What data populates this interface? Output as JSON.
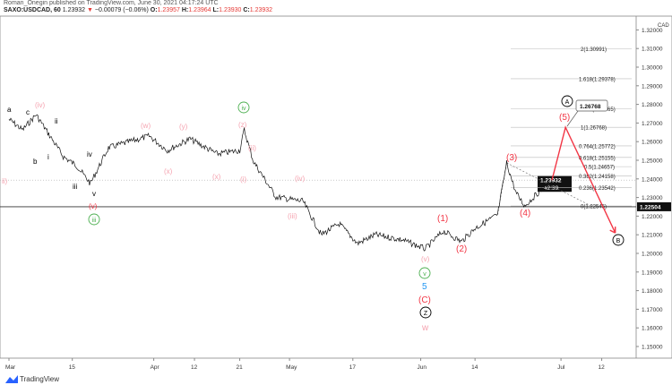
{
  "header": {
    "publisher": "Roman_Onegin published on TradingView.com, June 30, 2021 04:17:24 UTC",
    "symbol": "SAXO:USDCAD, 60",
    "last": "1.23932",
    "change": "−0.00079 (−0.06%)",
    "o_label": "O:",
    "o": "1.23957",
    "h_label": "H:",
    "h": "1.23964",
    "l_label": "L:",
    "l": "1.23930",
    "c_label": "C:",
    "c": "1.23932"
  },
  "brand": "TradingView",
  "colors": {
    "price": "#000000",
    "red": "#f23645",
    "pink": "#f5a3b0",
    "green": "#4caf50",
    "blue": "#2196f3"
  },
  "chart_data": {
    "type": "line",
    "title": "SAXO:USDCAD, 60",
    "y_axis": {
      "min": 1.15,
      "max": 1.32,
      "ticks": [
        "1.32000",
        "1.31000",
        "1.30000",
        "1.29000",
        "1.28000",
        "1.27000",
        "1.26000",
        "1.25000",
        "1.24000",
        "1.23000",
        "1.22000",
        "1.21000",
        "1.20000",
        "1.19000",
        "1.18000",
        "1.17000",
        "1.16000",
        "1.15000"
      ]
    },
    "x_axis": {
      "ticks": [
        {
          "label": "Mar",
          "day": 0
        },
        {
          "label": "15",
          "day": 14
        },
        {
          "label": "Apr",
          "day": 32
        },
        {
          "label": "12",
          "day": 41
        },
        {
          "label": "21",
          "day": 51
        },
        {
          "label": "May",
          "day": 62
        },
        {
          "label": "17",
          "day": 76
        },
        {
          "label": "Jun",
          "day": 91
        },
        {
          "label": "14",
          "day": 103
        },
        {
          "label": "Jul",
          "day": 122
        },
        {
          "label": "12",
          "day": 131
        }
      ]
    },
    "price_path": [
      [
        0,
        1.272
      ],
      [
        3,
        1.2663
      ],
      [
        6,
        1.2745
      ],
      [
        12,
        1.252
      ],
      [
        15,
        1.247
      ],
      [
        18,
        1.2375
      ],
      [
        22,
        1.2567
      ],
      [
        31,
        1.263
      ],
      [
        35,
        1.2553
      ],
      [
        40,
        1.2615
      ],
      [
        46,
        1.2534
      ],
      [
        51,
        1.2553
      ],
      [
        52,
        1.2663
      ],
      [
        54,
        1.2495
      ],
      [
        59,
        1.2303
      ],
      [
        65,
        1.2279
      ],
      [
        69,
        1.21
      ],
      [
        73,
        1.2159
      ],
      [
        77,
        1.2053
      ],
      [
        81,
        1.21
      ],
      [
        87,
        1.2072
      ],
      [
        92,
        1.2024
      ],
      [
        96,
        1.212
      ],
      [
        100,
        1.2063
      ],
      [
        103,
        1.2135
      ],
      [
        108,
        1.2207
      ],
      [
        110,
        1.2486
      ],
      [
        112,
        1.2327
      ],
      [
        114,
        1.2255
      ],
      [
        117,
        1.2327
      ],
      [
        120,
        1.2393
      ]
    ],
    "current_price": {
      "value": "1.23932",
      "countdown": "42:39"
    },
    "support_line": {
      "value": "1.22504"
    },
    "fib_levels": [
      {
        "label": "2(1.30991)",
        "price": 1.30991
      },
      {
        "label": "1.618(1.29378)",
        "price": 1.29378
      },
      {
        "label": "1.236(1.27765)",
        "price": 1.27765
      },
      {
        "label": "1(1.26768)",
        "price": 1.26768
      },
      {
        "label": "0.764(1.25772)",
        "price": 1.25772
      },
      {
        "label": "0.618(1.25155)",
        "price": 1.25155
      },
      {
        "label": "0.5(1.24657)",
        "price": 1.24657
      },
      {
        "label": "0.382(1.24158)",
        "price": 1.24158
      },
      {
        "label": "0.236(1.23542)",
        "price": 1.23542
      },
      {
        "label": "0(1.22545)",
        "price": 1.22545
      }
    ],
    "target_callout": "1.26768",
    "projection": [
      [
        120,
        1.2393
      ],
      [
        123,
        1.2677
      ],
      [
        134,
        1.211
      ]
    ],
    "wave_labels": [
      {
        "t": "a",
        "c": "#000"
      },
      {
        "t": "c",
        "c": "#000"
      },
      {
        "t": "ii",
        "c": "#000"
      },
      {
        "t": "b",
        "c": "#000"
      },
      {
        "t": "i",
        "c": "#000"
      },
      {
        "t": "iv",
        "c": "#000"
      },
      {
        "t": "iii",
        "c": "#000"
      },
      {
        "t": "v",
        "c": "#000"
      },
      {
        "t": "(iv)",
        "c": "#f5a3b0"
      },
      {
        "t": "(w)",
        "c": "#f5a3b0"
      },
      {
        "t": "(y)",
        "c": "#f5a3b0"
      },
      {
        "t": "(x)",
        "c": "#f5a3b0"
      },
      {
        "t": "(x)",
        "c": "#f5a3b0"
      },
      {
        "t": "(z)",
        "c": "#f5a3b0"
      },
      {
        "t": "(i)",
        "c": "#f5a3b0"
      },
      {
        "t": "(ii)",
        "c": "#f5a3b0"
      },
      {
        "t": "(iv)",
        "c": "#f5a3b0"
      },
      {
        "t": "(iii)",
        "c": "#f5a3b0"
      },
      {
        "t": "(v)",
        "c": "#f5a3b0"
      },
      {
        "t": "(v)",
        "c": "#f23645"
      },
      {
        "t": "ii)",
        "c": "#f5a3b0"
      },
      {
        "t": "(1)",
        "c": "#f23645"
      },
      {
        "t": "(2)",
        "c": "#f23645"
      },
      {
        "t": "(3)",
        "c": "#f23645"
      },
      {
        "t": "(4)",
        "c": "#f23645"
      },
      {
        "t": "(5)",
        "c": "#f23645"
      },
      {
        "t": "(C)",
        "c": "#f23645"
      },
      {
        "t": "5",
        "c": "#2196f3"
      },
      {
        "t": "w",
        "c": "#f5a3b0"
      }
    ],
    "circled_labels": [
      {
        "t": "iv",
        "c": "#4caf50"
      },
      {
        "t": "iii",
        "c": "#4caf50"
      },
      {
        "t": "v",
        "c": "#4caf50"
      },
      {
        "t": "Z",
        "c": "#000"
      },
      {
        "t": "A",
        "c": "#000"
      },
      {
        "t": "B",
        "c": "#000"
      }
    ]
  }
}
